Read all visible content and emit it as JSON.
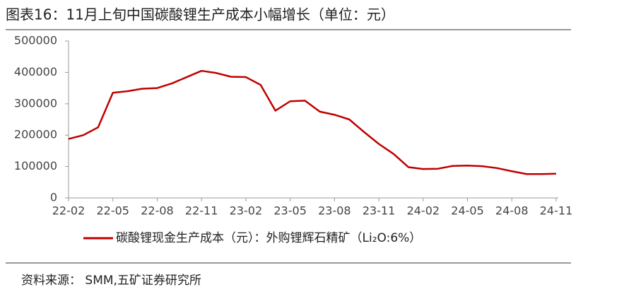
{
  "chart_data": {
    "type": "line",
    "title": "图表16：11月上旬中国碳酸锂生产成本小幅增长（单位：元）",
    "source": "资料来源：  SMM,五矿证券研究所",
    "categories": [
      "22-02",
      null,
      null,
      "22-05",
      null,
      null,
      "22-08",
      null,
      null,
      "22-11",
      null,
      null,
      "23-02",
      null,
      null,
      "23-05",
      null,
      null,
      "23-08",
      null,
      null,
      "23-11",
      null,
      null,
      "24-02",
      null,
      null,
      "24-05",
      null,
      null,
      "24-08",
      null,
      null,
      "24-11"
    ],
    "series": [
      {
        "name": "碳酸锂现金生产成本（元）：外购锂辉石精矿（Li₂O:6%）",
        "color": "#c00000",
        "values": [
          188000,
          200000,
          225000,
          335000,
          340000,
          348000,
          350000,
          365000,
          385000,
          405000,
          398000,
          386000,
          385000,
          360000,
          278000,
          308000,
          310000,
          275000,
          265000,
          250000,
          210000,
          172000,
          140000,
          98000,
          92000,
          93000,
          102000,
          103000,
          101000,
          95000,
          85000,
          76000,
          76000,
          77000
        ]
      }
    ],
    "ylim": [
      0,
      500000
    ],
    "yticks": [
      0,
      100000,
      200000,
      300000,
      400000,
      500000
    ],
    "grid": false
  }
}
